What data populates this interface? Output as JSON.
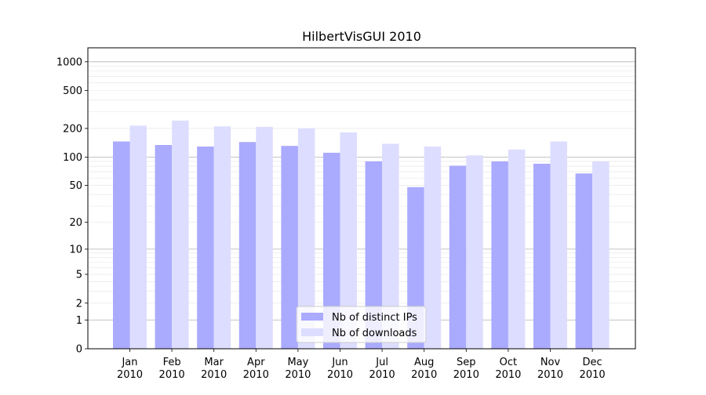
{
  "chart_data": {
    "type": "bar",
    "title": "HilbertVisGUI 2010",
    "xlabel": "",
    "ylabel": "",
    "categories": [
      [
        "Jan",
        "2010"
      ],
      [
        "Feb",
        "2010"
      ],
      [
        "Mar",
        "2010"
      ],
      [
        "Apr",
        "2010"
      ],
      [
        "May",
        "2010"
      ],
      [
        "Jun",
        "2010"
      ],
      [
        "Jul",
        "2010"
      ],
      [
        "Aug",
        "2010"
      ],
      [
        "Sep",
        "2010"
      ],
      [
        "Oct",
        "2010"
      ],
      [
        "Nov",
        "2010"
      ],
      [
        "Dec",
        "2010"
      ]
    ],
    "series": [
      {
        "name": "Nb of distinct IPs",
        "color": "#aaaaff",
        "values": [
          146,
          134,
          129,
          144,
          131,
          111,
          90,
          48,
          81,
          90,
          85,
          67
        ]
      },
      {
        "name": "Nb of downloads",
        "color": "#ddddff",
        "values": [
          214,
          242,
          210,
          208,
          201,
          182,
          138,
          129,
          104,
          120,
          146,
          90
        ]
      }
    ],
    "yscale": "log(1+y)",
    "ylim": [
      0,
      1400
    ],
    "yticks": [
      0,
      1,
      2,
      5,
      10,
      20,
      50,
      100,
      200,
      500,
      1000
    ],
    "grid": true,
    "legend_position": "bottom-center"
  }
}
